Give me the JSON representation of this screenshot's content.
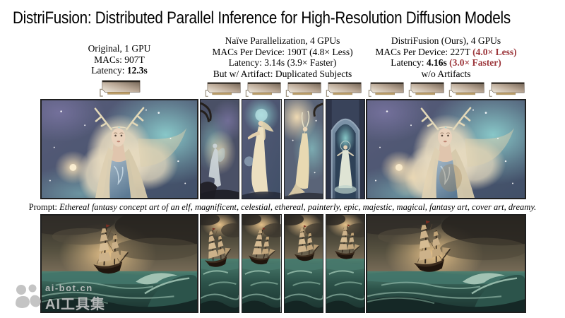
{
  "title": "DistriFusion: Distributed Parallel Inference for High-Resolution Diffusion Models",
  "colors": {
    "accent_red": "#9c363b",
    "text": "#000000",
    "background": "#ffffff",
    "watermark_gray": "#c8c8c8"
  },
  "columns": [
    {
      "name": "Original",
      "gpu_count": 1,
      "lines": [
        [
          {
            "t": "Original, 1 GPU"
          }
        ],
        [
          {
            "t": "MACs: 907T"
          }
        ],
        [
          {
            "t": "Latency: "
          },
          {
            "t": "12.3s",
            "b": true
          }
        ]
      ]
    },
    {
      "name": "Naïve Parallelization",
      "gpu_count": 4,
      "lines": [
        [
          {
            "t": "Naïve Parallelization, 4 GPUs"
          }
        ],
        [
          {
            "t": "MACs Per Device: 190T (4.8× Less)"
          }
        ],
        [
          {
            "t": "Latency: 3.14s (3.9× Faster)"
          }
        ],
        [
          {
            "t": "But w/ Artifact: Duplicated Subjects"
          }
        ]
      ]
    },
    {
      "name": "DistriFusion (Ours)",
      "gpu_count": 4,
      "lines": [
        [
          {
            "t": "DistriFusion (Ours), 4 GPUs"
          }
        ],
        [
          {
            "t": "MACs Per Device: 227T "
          },
          {
            "t": "(4.0× Less)",
            "b": true,
            "r": true
          }
        ],
        [
          {
            "t": "Latency: "
          },
          {
            "t": "4.16s",
            "b": true
          },
          {
            "t": " "
          },
          {
            "t": "(3.0× Faster)",
            "b": true,
            "r": true
          }
        ],
        [
          {
            "t": "w/o Artifacts"
          }
        ]
      ]
    }
  ],
  "prompt": {
    "label": "Prompt:",
    "text": "Ethereal fantasy concept art of an elf, magnificent, celestial, ethereal, painterly, epic, majestic, magical, fantasy art, cover art, dreamy."
  },
  "watermark": {
    "line1": "ai-bot.cn",
    "line2": "AI工具集"
  },
  "icons": {
    "gpu": "gpu-card-icon",
    "watermark_logo": "ai-bot-logo-icon"
  }
}
